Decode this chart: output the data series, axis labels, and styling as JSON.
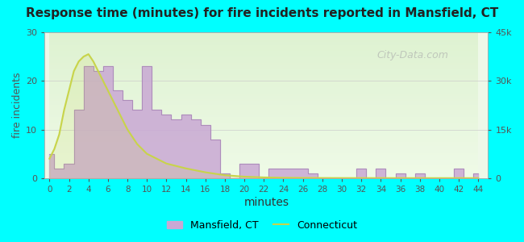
{
  "title": "Response time (minutes) for fire incidents reported in Mansfield, CT",
  "xlabel": "minutes",
  "ylabel_left": "fire incidents",
  "ylabel_right": "",
  "x_ticks": [
    0,
    2,
    4,
    6,
    8,
    10,
    12,
    14,
    16,
    18,
    20,
    22,
    24,
    26,
    28,
    30,
    32,
    34,
    36,
    38,
    40,
    42,
    44
  ],
  "ylim_left": [
    0,
    30
  ],
  "ylim_right": [
    0,
    45000
  ],
  "yticks_left": [
    0,
    10,
    20,
    30
  ],
  "yticks_right": [
    0,
    15000,
    30000,
    45000
  ],
  "ytick_labels_right": [
    "0",
    "15k",
    "30k",
    "45k"
  ],
  "background_color": "#00ffff",
  "plot_bg_gradient_top": "#e8f5e0",
  "plot_bg_gradient_bottom": "#f5ffe8",
  "mansfield_color": "#c9a8d4",
  "mansfield_edge_color": "#a080b0",
  "connecticut_color": "#c8d44a",
  "legend_mansfield_label": "Mansfield, CT",
  "legend_connecticut_label": "Connecticut",
  "mansfield_x": [
    0,
    1,
    2,
    3,
    4,
    5,
    6,
    7,
    8,
    9,
    10,
    11,
    12,
    13,
    14,
    15,
    16,
    17,
    18,
    19,
    20,
    21,
    22,
    23,
    24,
    25,
    26,
    27,
    28,
    29,
    30,
    31,
    32,
    33,
    34,
    35,
    36,
    37,
    38,
    39,
    40,
    41,
    42,
    43,
    44
  ],
  "mansfield_y": [
    5,
    2,
    3,
    14,
    23,
    22,
    23,
    18,
    16,
    14,
    23,
    14,
    13,
    12,
    13,
    12,
    11,
    8,
    1,
    0,
    3,
    3,
    0,
    2,
    2,
    2,
    2,
    1,
    0,
    0,
    0,
    0,
    2,
    0,
    2,
    0,
    1,
    0,
    1,
    0,
    0,
    0,
    2,
    0,
    1
  ],
  "connecticut_x": [
    0,
    0.5,
    1,
    1.5,
    2,
    2.5,
    3,
    3.5,
    4,
    4.5,
    5,
    6,
    7,
    8,
    9,
    10,
    12,
    14,
    16,
    18,
    20,
    22,
    24,
    26,
    28,
    30,
    35,
    40,
    44
  ],
  "connecticut_y": [
    4,
    6,
    9,
    14,
    18,
    22,
    24,
    25,
    25.5,
    24,
    22,
    18,
    14,
    10,
    7,
    5,
    3,
    2,
    1.2,
    0.6,
    0.3,
    0.15,
    0.08,
    0.05,
    0.03,
    0.02,
    0.01,
    0.005,
    0.002
  ],
  "watermark": "City-Data.com"
}
